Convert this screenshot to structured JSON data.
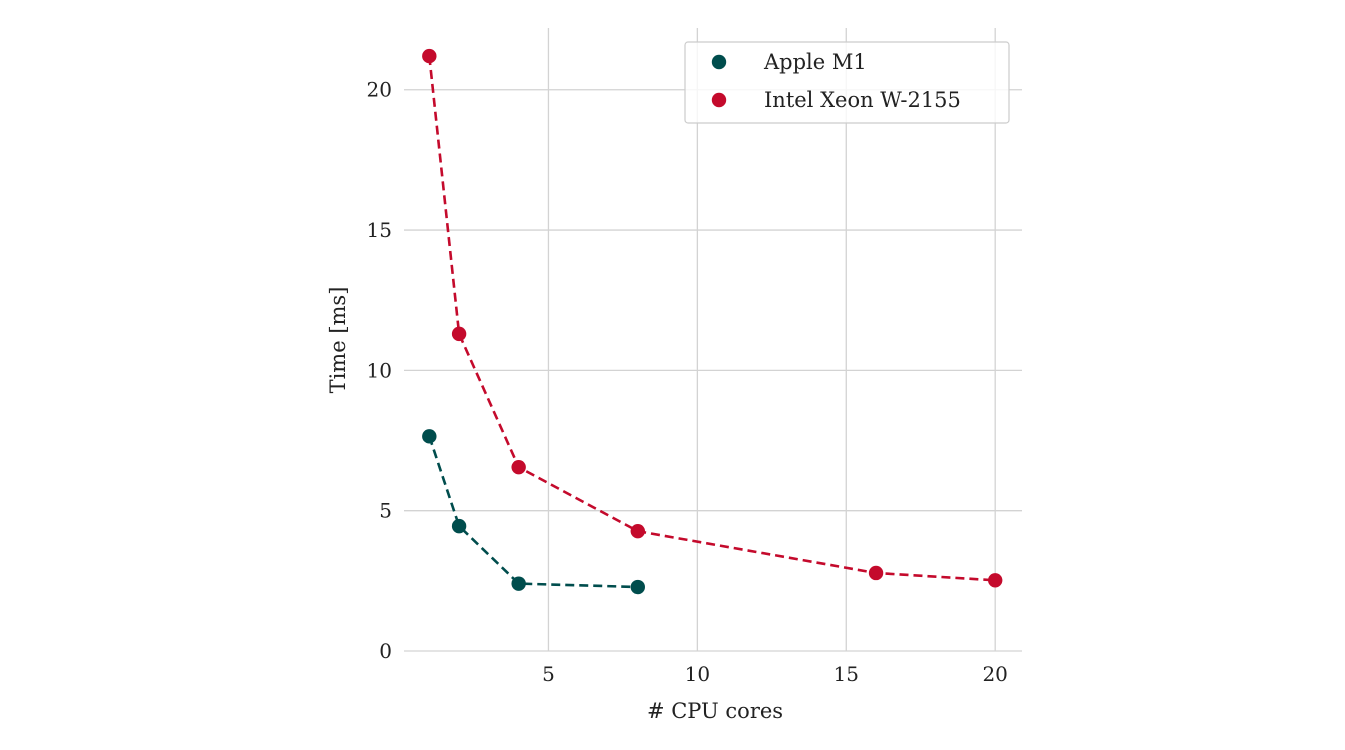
{
  "chart_data": {
    "type": "line",
    "title": "",
    "xlabel": "# CPU cores",
    "ylabel": "Time [ms]",
    "xlim": [
      0.15,
      20.9
    ],
    "ylim": [
      0,
      22.2
    ],
    "xticks": [
      5,
      10,
      15,
      20
    ],
    "yticks": [
      0,
      5,
      10,
      15,
      20
    ],
    "grid": true,
    "legend_position": "top-right",
    "series": [
      {
        "name": "Apple M1",
        "color": "#004d4d",
        "x": [
          1,
          2,
          4,
          8
        ],
        "y": [
          7.65,
          4.45,
          2.4,
          2.28
        ]
      },
      {
        "name": "Intel Xeon W-2155",
        "color": "#c40a2c",
        "x": [
          1,
          2,
          4,
          8,
          16,
          20
        ],
        "y": [
          21.2,
          11.3,
          6.55,
          4.27,
          2.78,
          2.52
        ]
      }
    ]
  }
}
